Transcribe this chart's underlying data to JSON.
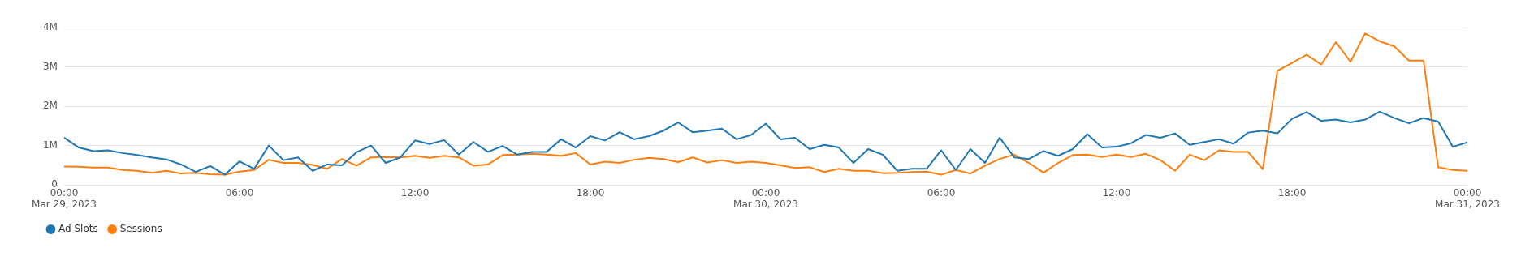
{
  "chart_data": {
    "type": "line",
    "x": [
      "2023-03-29T00:00",
      "2023-03-29T00:30",
      "2023-03-29T01:00",
      "2023-03-29T01:30",
      "2023-03-29T02:00",
      "2023-03-29T02:30",
      "2023-03-29T03:00",
      "2023-03-29T03:30",
      "2023-03-29T04:00",
      "2023-03-29T04:30",
      "2023-03-29T05:00",
      "2023-03-29T05:30",
      "2023-03-29T06:00",
      "2023-03-29T06:30",
      "2023-03-29T07:00",
      "2023-03-29T07:30",
      "2023-03-29T08:00",
      "2023-03-29T08:30",
      "2023-03-29T09:00",
      "2023-03-29T09:30",
      "2023-03-29T10:00",
      "2023-03-29T10:30",
      "2023-03-29T11:00",
      "2023-03-29T11:30",
      "2023-03-29T12:00",
      "2023-03-29T12:30",
      "2023-03-29T13:00",
      "2023-03-29T13:30",
      "2023-03-29T14:00",
      "2023-03-29T14:30",
      "2023-03-29T15:00",
      "2023-03-29T15:30",
      "2023-03-29T16:00",
      "2023-03-29T16:30",
      "2023-03-29T17:00",
      "2023-03-29T17:30",
      "2023-03-29T18:00",
      "2023-03-29T18:30",
      "2023-03-29T19:00",
      "2023-03-29T19:30",
      "2023-03-29T20:00",
      "2023-03-29T20:30",
      "2023-03-29T21:00",
      "2023-03-29T21:30",
      "2023-03-29T22:00",
      "2023-03-29T22:30",
      "2023-03-29T23:00",
      "2023-03-29T23:30",
      "2023-03-30T00:00",
      "2023-03-30T00:30",
      "2023-03-30T01:00",
      "2023-03-30T01:30",
      "2023-03-30T02:00",
      "2023-03-30T02:30",
      "2023-03-30T03:00",
      "2023-03-30T03:30",
      "2023-03-30T04:00",
      "2023-03-30T04:30",
      "2023-03-30T05:00",
      "2023-03-30T05:30",
      "2023-03-30T06:00",
      "2023-03-30T06:30",
      "2023-03-30T07:00",
      "2023-03-30T07:30",
      "2023-03-30T08:00",
      "2023-03-30T08:30",
      "2023-03-30T09:00",
      "2023-03-30T09:30",
      "2023-03-30T10:00",
      "2023-03-30T10:30",
      "2023-03-30T11:00",
      "2023-03-30T11:30",
      "2023-03-30T12:00",
      "2023-03-30T12:30",
      "2023-03-30T13:00",
      "2023-03-30T13:30",
      "2023-03-30T14:00",
      "2023-03-30T14:30",
      "2023-03-30T15:00",
      "2023-03-30T15:30",
      "2023-03-30T16:00",
      "2023-03-30T16:30",
      "2023-03-30T17:00",
      "2023-03-30T17:30",
      "2023-03-30T18:00",
      "2023-03-30T18:30",
      "2023-03-30T19:00",
      "2023-03-30T19:30",
      "2023-03-30T20:00",
      "2023-03-30T20:30",
      "2023-03-30T21:00",
      "2023-03-30T21:30",
      "2023-03-30T22:00",
      "2023-03-30T22:30",
      "2023-03-30T23:00",
      "2023-03-30T23:30",
      "2023-03-31T00:00"
    ],
    "series": [
      {
        "name": "Ad Slots",
        "color": "#1f77b4",
        "values": [
          1200000,
          950000,
          860000,
          880000,
          810000,
          760000,
          700000,
          650000,
          520000,
          330000,
          480000,
          260000,
          600000,
          410000,
          1000000,
          630000,
          700000,
          360000,
          520000,
          500000,
          830000,
          1000000,
          560000,
          700000,
          1130000,
          1040000,
          1140000,
          770000,
          1090000,
          840000,
          990000,
          770000,
          840000,
          840000,
          1160000,
          950000,
          1240000,
          1130000,
          1340000,
          1160000,
          1240000,
          1380000,
          1590000,
          1340000,
          1380000,
          1430000,
          1160000,
          1270000,
          1560000,
          1160000,
          1200000,
          910000,
          1020000,
          950000,
          560000,
          910000,
          770000,
          360000,
          410000,
          410000,
          880000,
          380000,
          910000,
          560000,
          1200000,
          700000,
          660000,
          860000,
          740000,
          910000,
          1290000,
          950000,
          970000,
          1060000,
          1270000,
          1200000,
          1310000,
          1020000,
          1090000,
          1160000,
          1050000,
          1330000,
          1380000,
          1310000,
          1680000,
          1850000,
          1630000,
          1660000,
          1590000,
          1660000,
          1860000,
          1700000,
          1570000,
          1700000,
          1610000,
          970000,
          1080000
        ]
      },
      {
        "name": "Sessions",
        "color": "#ff7f0e",
        "values": [
          470000,
          460000,
          440000,
          440000,
          380000,
          360000,
          310000,
          360000,
          290000,
          310000,
          270000,
          260000,
          340000,
          380000,
          640000,
          560000,
          560000,
          510000,
          410000,
          660000,
          490000,
          700000,
          710000,
          700000,
          740000,
          690000,
          740000,
          700000,
          490000,
          520000,
          760000,
          770000,
          790000,
          770000,
          740000,
          810000,
          520000,
          590000,
          560000,
          640000,
          690000,
          660000,
          580000,
          700000,
          570000,
          630000,
          560000,
          590000,
          560000,
          500000,
          430000,
          450000,
          330000,
          410000,
          360000,
          360000,
          300000,
          310000,
          330000,
          340000,
          260000,
          380000,
          290000,
          490000,
          660000,
          770000,
          560000,
          310000,
          560000,
          760000,
          770000,
          710000,
          770000,
          710000,
          790000,
          630000,
          360000,
          770000,
          630000,
          880000,
          840000,
          840000,
          400000,
          2900000,
          3100000,
          3310000,
          3060000,
          3630000,
          3130000,
          3850000,
          3650000,
          3520000,
          3160000,
          3160000,
          450000,
          380000,
          360000
        ]
      }
    ],
    "xlim": [
      "2023-03-29T00:00",
      "2023-03-31T00:00"
    ],
    "xticks": [
      {
        "value": "2023-03-29T00:00",
        "label": "00:00\nMar 29, 2023"
      },
      {
        "value": "2023-03-29T06:00",
        "label": "06:00"
      },
      {
        "value": "2023-03-29T12:00",
        "label": "12:00"
      },
      {
        "value": "2023-03-29T18:00",
        "label": "18:00"
      },
      {
        "value": "2023-03-30T00:00",
        "label": "00:00\nMar 30, 2023"
      },
      {
        "value": "2023-03-30T06:00",
        "label": "06:00"
      },
      {
        "value": "2023-03-30T12:00",
        "label": "12:00"
      },
      {
        "value": "2023-03-30T18:00",
        "label": "18:00"
      },
      {
        "value": "2023-03-31T00:00",
        "label": "00:00\nMar 31, 2023"
      }
    ],
    "ylim": [
      0,
      4000000
    ],
    "yticks": [
      0,
      {
        "value": 1000000,
        "label": "1M"
      },
      {
        "value": 2000000,
        "label": "2M"
      },
      {
        "value": 3000000,
        "label": "3M"
      },
      {
        "value": 4000000,
        "label": "4M"
      }
    ],
    "grid": "y",
    "legend": "bottom left"
  }
}
